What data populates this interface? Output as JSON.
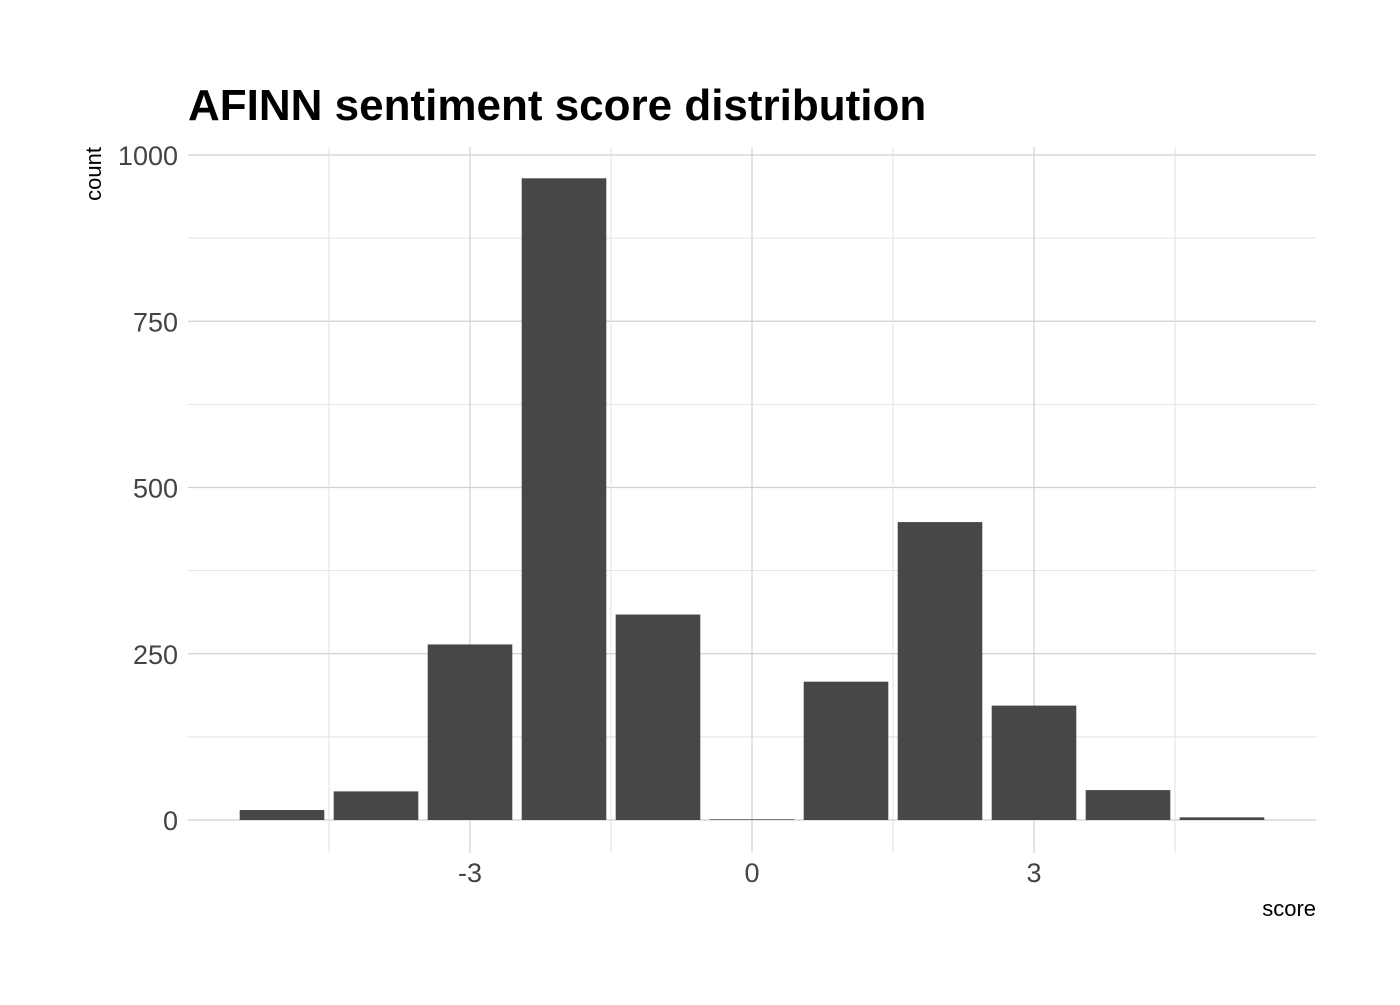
{
  "chart_data": {
    "type": "bar",
    "title": "AFINN sentiment score distribution",
    "xlabel": "score",
    "ylabel": "count",
    "x": [
      -5,
      -4,
      -3,
      -2,
      -1,
      0,
      1,
      2,
      3,
      4,
      5
    ],
    "values": [
      15,
      43,
      264,
      965,
      309,
      1,
      208,
      448,
      172,
      45,
      4
    ],
    "xlim": [
      -6,
      6
    ],
    "ylim": [
      0,
      1000
    ],
    "x_ticks": [
      -3,
      0,
      3
    ],
    "x_tick_labels": [
      "-3",
      "0",
      "3"
    ],
    "y_ticks": [
      0,
      250,
      500,
      750,
      1000
    ],
    "y_tick_labels": [
      "0",
      "250",
      "500",
      "750",
      "1000"
    ],
    "grid": true,
    "legend": "none",
    "bar_color": "#474747",
    "grid_color": "#d0d0d0"
  }
}
